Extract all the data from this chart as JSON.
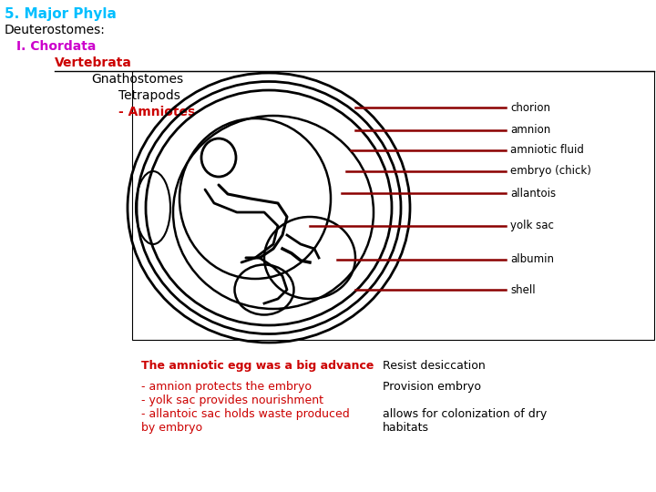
{
  "title_major": "5. Major Phyla",
  "title_major_color": "#00BFFF",
  "line2": "Deuterostomes:",
  "line2_color": "#000000",
  "line3": "I. Chordata",
  "line3_color": "#CC00CC",
  "line4": "Vertebrata",
  "line4_color": "#CC0000",
  "line5": "Gnathostomes",
  "line5_color": "#000000",
  "line6": "Tetrapods",
  "line6_color": "#000000",
  "line7": "- Amniotes",
  "line7_color": "#CC0000",
  "labels": [
    "chorion",
    "amnion",
    "amniotic fluid",
    "embryo (chick)",
    "allantois",
    "yolk sac",
    "albumin",
    "shell"
  ],
  "label_color": "#000000",
  "arrow_color": "#8B0000",
  "bg_color": "#FFFFFF",
  "bottom_left_color": "#CC0000",
  "bottom_right_color": "#000000"
}
